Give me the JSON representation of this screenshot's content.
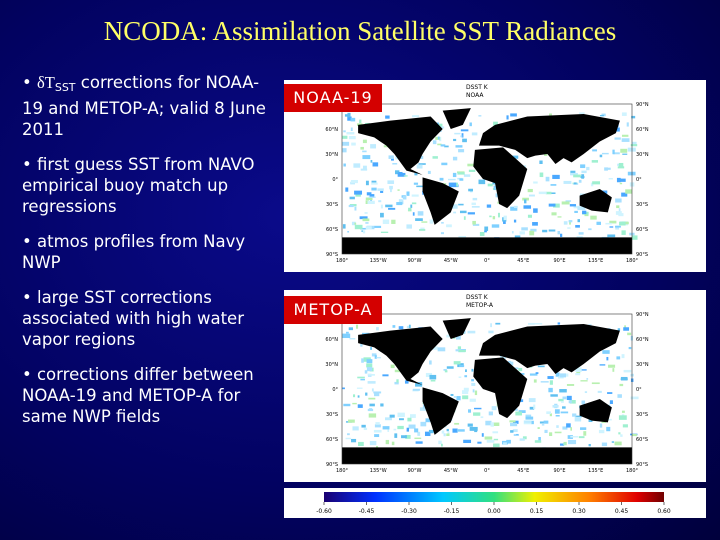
{
  "title": "NCODA: Assimilation Satellite SST Radiances",
  "bullets": [
    {
      "prefix": "δT",
      "subscript": "SST",
      "text": " corrections for NOAA-19 and METOP-A; valid 8 June 2011"
    },
    {
      "text": "first guess SST from NAVO empirical buoy match up regressions"
    },
    {
      "text": "atmos profiles from Navy NWP"
    },
    {
      "text": "large SST corrections associated with high water vapor regions"
    },
    {
      "text": "corrections differ between NOAA-19 and METOP-A for same NWP fields"
    }
  ],
  "maps": [
    {
      "label": "NOAA-19",
      "header": [
        "DSST  K",
        "NOAA"
      ]
    },
    {
      "label": "METOP-A",
      "header": [
        "DSST  K",
        "METOP-A"
      ]
    }
  ],
  "map_axes": {
    "lat": [
      "90°N",
      "60°N",
      "30°N",
      "0°",
      "30°S",
      "60°S",
      "90°S"
    ],
    "lon": [
      "180°",
      "135°W",
      "90°W",
      "45°W",
      "0°",
      "45°E",
      "90°E",
      "135°E",
      "180°"
    ]
  },
  "colorbar": [
    "-0.60",
    "-0.45",
    "-0.30",
    "-0.15",
    "0.00",
    "0.15",
    "0.30",
    "0.45",
    "0.60"
  ]
}
